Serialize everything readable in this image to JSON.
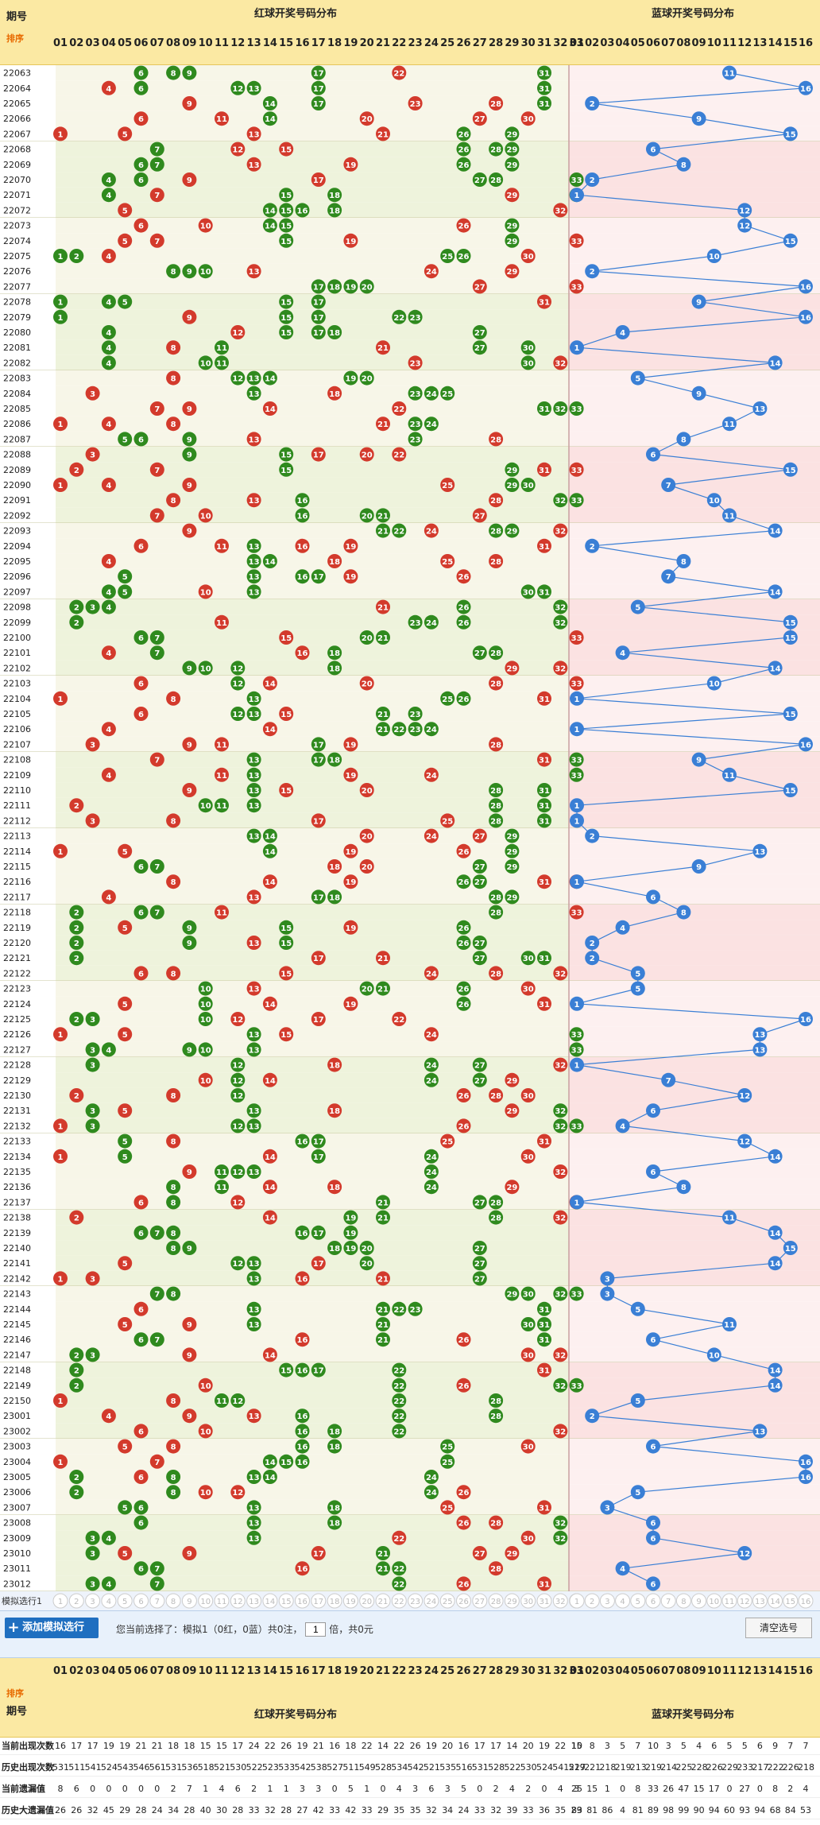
{
  "header": {
    "period_label": "期号",
    "sort_label": "排序",
    "red_title": "红球开奖号码分布",
    "blue_title": "蓝球开奖号码分布",
    "red_numbers": [
      "01",
      "02",
      "03",
      "04",
      "05",
      "06",
      "07",
      "08",
      "09",
      "10",
      "11",
      "12",
      "13",
      "14",
      "15",
      "16",
      "17",
      "18",
      "19",
      "20",
      "21",
      "22",
      "23",
      "24",
      "25",
      "26",
      "27",
      "28",
      "29",
      "30",
      "31",
      "32",
      "33"
    ],
    "blue_numbers": [
      "01",
      "02",
      "03",
      "04",
      "05",
      "06",
      "07",
      "08",
      "09",
      "10",
      "11",
      "12",
      "13",
      "14",
      "15",
      "16"
    ]
  },
  "colors": {
    "red_ball": "#d33a2c",
    "green_ball": "#2f8a1e",
    "blue_ball": "#3a7fd5",
    "header_bg": "#fbe9a3",
    "red_bg_a": "#f7f6e8",
    "red_bg_b": "#eef3dc",
    "blue_bg_a": "#fdf0f0",
    "blue_bg_b": "#fbe2e2"
  },
  "draws": [
    {
      "p": "22063",
      "r": [
        6,
        8,
        9,
        17,
        22,
        31
      ],
      "b": 11
    },
    {
      "p": "22064",
      "r": [
        4,
        6,
        12,
        13,
        17,
        31
      ],
      "b": 16
    },
    {
      "p": "22065",
      "r": [
        9,
        14,
        17,
        23,
        28,
        31
      ],
      "b": 2
    },
    {
      "p": "22066",
      "r": [
        6,
        11,
        14,
        20,
        27,
        30
      ],
      "b": 9
    },
    {
      "p": "22067",
      "r": [
        1,
        5,
        13,
        21,
        26,
        29
      ],
      "b": 15
    },
    {
      "p": "22068",
      "r": [
        7,
        12,
        15,
        26,
        28,
        29
      ],
      "b": 6
    },
    {
      "p": "22069",
      "r": [
        6,
        7,
        13,
        19,
        26,
        29
      ],
      "b": 8
    },
    {
      "p": "22070",
      "r": [
        4,
        6,
        9,
        17,
        27,
        28,
        33
      ],
      "b": 2
    },
    {
      "p": "22071",
      "r": [
        4,
        7,
        15,
        18,
        29,
        33
      ],
      "b": 1
    },
    {
      "p": "22072",
      "r": [
        5,
        14,
        15,
        16,
        18,
        32
      ],
      "b": 12
    },
    {
      "p": "22073",
      "r": [
        6,
        10,
        14,
        15,
        26,
        29
      ],
      "b": 12
    },
    {
      "p": "22074",
      "r": [
        5,
        7,
        15,
        19,
        29,
        33
      ],
      "b": 15
    },
    {
      "p": "22075",
      "r": [
        1,
        2,
        4,
        25,
        26,
        30
      ],
      "b": 10
    },
    {
      "p": "22076",
      "r": [
        8,
        9,
        10,
        13,
        24,
        29
      ],
      "b": 2
    },
    {
      "p": "22077",
      "r": [
        17,
        18,
        19,
        20,
        27,
        33
      ],
      "b": 16
    },
    {
      "p": "22078",
      "r": [
        1,
        4,
        5,
        15,
        17,
        31
      ],
      "b": 9
    },
    {
      "p": "22079",
      "r": [
        1,
        9,
        15,
        17,
        22,
        23
      ],
      "b": 16
    },
    {
      "p": "22080",
      "r": [
        4,
        12,
        15,
        17,
        18,
        27
      ],
      "b": 4
    },
    {
      "p": "22081",
      "r": [
        4,
        8,
        11,
        21,
        27,
        30
      ],
      "b": 1
    },
    {
      "p": "22082",
      "r": [
        4,
        10,
        11,
        23,
        30,
        32
      ],
      "b": 14
    },
    {
      "p": "22083",
      "r": [
        8,
        12,
        13,
        14,
        19,
        20
      ],
      "b": 5
    },
    {
      "p": "22084",
      "r": [
        3,
        13,
        18,
        23,
        24,
        25
      ],
      "b": 9
    },
    {
      "p": "22085",
      "r": [
        7,
        9,
        14,
        22,
        31,
        32,
        33
      ],
      "b": 13
    },
    {
      "p": "22086",
      "r": [
        1,
        4,
        8,
        21,
        23,
        24
      ],
      "b": 11
    },
    {
      "p": "22087",
      "r": [
        5,
        6,
        9,
        13,
        23,
        28
      ],
      "b": 8
    },
    {
      "p": "22088",
      "r": [
        3,
        9,
        15,
        17,
        20,
        22
      ],
      "b": 6
    },
    {
      "p": "22089",
      "r": [
        2,
        7,
        15,
        29,
        31,
        33
      ],
      "b": 15
    },
    {
      "p": "22090",
      "r": [
        1,
        4,
        9,
        25,
        29,
        30
      ],
      "b": 7
    },
    {
      "p": "22091",
      "r": [
        8,
        13,
        16,
        28,
        32,
        33
      ],
      "b": 10
    },
    {
      "p": "22092",
      "r": [
        7,
        10,
        16,
        20,
        21,
        27
      ],
      "b": 11
    },
    {
      "p": "22093",
      "r": [
        9,
        21,
        22,
        24,
        28,
        29,
        32
      ],
      "b": 14
    },
    {
      "p": "22094",
      "r": [
        6,
        11,
        13,
        16,
        19,
        31
      ],
      "b": 2
    },
    {
      "p": "22095",
      "r": [
        4,
        13,
        14,
        18,
        25,
        28
      ],
      "b": 8
    },
    {
      "p": "22096",
      "r": [
        5,
        13,
        16,
        17,
        19,
        26
      ],
      "b": 7
    },
    {
      "p": "22097",
      "r": [
        4,
        5,
        10,
        13,
        30,
        31
      ],
      "b": 14
    },
    {
      "p": "22098",
      "r": [
        2,
        3,
        4,
        21,
        26,
        32
      ],
      "b": 5
    },
    {
      "p": "22099",
      "r": [
        2,
        11,
        23,
        24,
        26,
        32
      ],
      "b": 15
    },
    {
      "p": "22100",
      "r": [
        6,
        7,
        15,
        20,
        21,
        33
      ],
      "b": 15
    },
    {
      "p": "22101",
      "r": [
        4,
        7,
        16,
        18,
        27,
        28
      ],
      "b": 4
    },
    {
      "p": "22102",
      "r": [
        9,
        10,
        12,
        18,
        29,
        32
      ],
      "b": 14
    },
    {
      "p": "22103",
      "r": [
        6,
        12,
        14,
        20,
        28,
        33
      ],
      "b": 10
    },
    {
      "p": "22104",
      "r": [
        1,
        8,
        13,
        25,
        26,
        31
      ],
      "b": 1
    },
    {
      "p": "22105",
      "r": [
        6,
        12,
        13,
        15,
        21,
        23
      ],
      "b": 15
    },
    {
      "p": "22106",
      "r": [
        4,
        14,
        21,
        22,
        23,
        24
      ],
      "b": 1
    },
    {
      "p": "22107",
      "r": [
        3,
        9,
        11,
        17,
        19,
        28
      ],
      "b": 16
    },
    {
      "p": "22108",
      "r": [
        7,
        13,
        17,
        18,
        31,
        33
      ],
      "b": 9
    },
    {
      "p": "22109",
      "r": [
        4,
        11,
        13,
        19,
        24,
        33
      ],
      "b": 11
    },
    {
      "p": "22110",
      "r": [
        9,
        13,
        15,
        20,
        28,
        31
      ],
      "b": 15
    },
    {
      "p": "22111",
      "r": [
        2,
        10,
        11,
        13,
        28,
        31
      ],
      "b": 1
    },
    {
      "p": "22112",
      "r": [
        3,
        8,
        17,
        25,
        28,
        31
      ],
      "b": 1
    },
    {
      "p": "22113",
      "r": [
        13,
        14,
        20,
        24,
        27,
        29
      ],
      "b": 2
    },
    {
      "p": "22114",
      "r": [
        1,
        5,
        14,
        19,
        26,
        29
      ],
      "b": 13
    },
    {
      "p": "22115",
      "r": [
        6,
        7,
        18,
        20,
        27,
        29
      ],
      "b": 9
    },
    {
      "p": "22116",
      "r": [
        8,
        14,
        19,
        26,
        27,
        31,
        33
      ],
      "b": 1
    },
    {
      "p": "22117",
      "r": [
        4,
        13,
        17,
        18,
        28,
        29
      ],
      "b": 6
    },
    {
      "p": "22118",
      "r": [
        2,
        6,
        7,
        11,
        28,
        33
      ],
      "b": 8
    },
    {
      "p": "22119",
      "r": [
        2,
        5,
        9,
        15,
        19,
        26
      ],
      "b": 4
    },
    {
      "p": "22120",
      "r": [
        2,
        9,
        13,
        15,
        26,
        27
      ],
      "b": 2
    },
    {
      "p": "22121",
      "r": [
        2,
        17,
        21,
        27,
        30,
        31
      ],
      "b": 2
    },
    {
      "p": "22122",
      "r": [
        6,
        8,
        15,
        24,
        28,
        32
      ],
      "b": 5
    },
    {
      "p": "22123",
      "r": [
        10,
        13,
        20,
        21,
        26,
        30
      ],
      "b": 5
    },
    {
      "p": "22124",
      "r": [
        5,
        10,
        14,
        19,
        26,
        31
      ],
      "b": 1
    },
    {
      "p": "22125",
      "r": [
        2,
        3,
        10,
        12,
        17,
        22
      ],
      "b": 16
    },
    {
      "p": "22126",
      "r": [
        1,
        5,
        13,
        15,
        24,
        33
      ],
      "b": 13
    },
    {
      "p": "22127",
      "r": [
        3,
        4,
        9,
        10,
        13,
        33
      ],
      "b": 13
    },
    {
      "p": "22128",
      "r": [
        3,
        12,
        18,
        24,
        27,
        32
      ],
      "b": 1
    },
    {
      "p": "22129",
      "r": [
        10,
        12,
        14,
        24,
        27,
        29
      ],
      "b": 7
    },
    {
      "p": "22130",
      "r": [
        2,
        8,
        12,
        26,
        28,
        30
      ],
      "b": 12
    },
    {
      "p": "22131",
      "r": [
        3,
        5,
        13,
        18,
        29,
        32
      ],
      "b": 6
    },
    {
      "p": "22132",
      "r": [
        1,
        3,
        12,
        13,
        26,
        32,
        33
      ],
      "b": 4
    },
    {
      "p": "22133",
      "r": [
        5,
        8,
        16,
        17,
        25,
        31
      ],
      "b": 12
    },
    {
      "p": "22134",
      "r": [
        1,
        5,
        14,
        17,
        24,
        30
      ],
      "b": 14
    },
    {
      "p": "22135",
      "r": [
        9,
        11,
        12,
        13,
        24,
        32
      ],
      "b": 6
    },
    {
      "p": "22136",
      "r": [
        8,
        11,
        14,
        18,
        24,
        29
      ],
      "b": 8
    },
    {
      "p": "22137",
      "r": [
        6,
        8,
        12,
        21,
        27,
        28,
        33
      ],
      "b": 1
    },
    {
      "p": "22138",
      "r": [
        2,
        14,
        19,
        21,
        28,
        32
      ],
      "b": 11
    },
    {
      "p": "22139",
      "r": [
        6,
        7,
        8,
        16,
        17,
        19
      ],
      "b": 14
    },
    {
      "p": "22140",
      "r": [
        8,
        9,
        18,
        19,
        20,
        27
      ],
      "b": 15
    },
    {
      "p": "22141",
      "r": [
        5,
        12,
        13,
        17,
        20,
        27
      ],
      "b": 14
    },
    {
      "p": "22142",
      "r": [
        1,
        3,
        13,
        16,
        21,
        27
      ],
      "b": 3
    },
    {
      "p": "22143",
      "r": [
        7,
        8,
        29,
        30,
        32,
        33
      ],
      "b": 3
    },
    {
      "p": "22144",
      "r": [
        6,
        13,
        21,
        22,
        23,
        31
      ],
      "b": 5
    },
    {
      "p": "22145",
      "r": [
        5,
        9,
        13,
        21,
        30,
        31
      ],
      "b": 11
    },
    {
      "p": "22146",
      "r": [
        6,
        7,
        16,
        21,
        26,
        31
      ],
      "b": 6
    },
    {
      "p": "22147",
      "r": [
        2,
        3,
        9,
        14,
        30,
        32
      ],
      "b": 10
    },
    {
      "p": "22148",
      "r": [
        2,
        15,
        16,
        17,
        22,
        31
      ],
      "b": 14
    },
    {
      "p": "22149",
      "r": [
        2,
        10,
        22,
        26,
        32,
        33
      ],
      "b": 14
    },
    {
      "p": "22150",
      "r": [
        1,
        8,
        11,
        12,
        22,
        28
      ],
      "b": 5
    },
    {
      "p": "23001",
      "r": [
        4,
        9,
        13,
        16,
        22,
        28
      ],
      "b": 2
    },
    {
      "p": "23002",
      "r": [
        6,
        10,
        16,
        18,
        22,
        32
      ],
      "b": 13
    },
    {
      "p": "23003",
      "r": [
        5,
        8,
        16,
        18,
        25,
        30
      ],
      "b": 6
    },
    {
      "p": "23004",
      "r": [
        1,
        7,
        14,
        15,
        16,
        25
      ],
      "b": 16
    },
    {
      "p": "23005",
      "r": [
        2,
        6,
        8,
        13,
        14,
        24
      ],
      "b": 16
    },
    {
      "p": "23006",
      "r": [
        2,
        8,
        10,
        12,
        24,
        26
      ],
      "b": 5
    },
    {
      "p": "23007",
      "r": [
        5,
        6,
        13,
        18,
        25,
        31
      ],
      "b": 3
    },
    {
      "p": "23008",
      "r": [
        6,
        13,
        18,
        26,
        28,
        32
      ],
      "b": 6
    },
    {
      "p": "23009",
      "r": [
        3,
        4,
        13,
        22,
        30,
        32
      ],
      "b": 6
    },
    {
      "p": "23010",
      "r": [
        3,
        5,
        9,
        17,
        21,
        27,
        29
      ],
      "b": 12
    },
    {
      "p": "23011",
      "r": [
        6,
        7,
        16,
        21,
        22,
        28
      ],
      "b": 4
    },
    {
      "p": "23012",
      "r": [
        3,
        4,
        7,
        22,
        26,
        31
      ],
      "b": 6
    }
  ],
  "sim_row_label": "模拟选行1",
  "control": {
    "add_sim_label": "添加模拟选行",
    "selection_text": "您当前选择了：模拟1（0红，0蓝）共0注，",
    "multiplier_value": "1",
    "multiplier_suffix": "倍，共0元",
    "clear_label": "清空选号"
  },
  "footer_stats": {
    "labels": [
      "当前出现次数",
      "历史出现次数",
      "当前遗漏值",
      "历史大遗漏值"
    ],
    "rows": [
      [
        16,
        17,
        17,
        19,
        19,
        21,
        21,
        18,
        18,
        15,
        15,
        17,
        24,
        22,
        26,
        19,
        21,
        16,
        18,
        22,
        14,
        22,
        26,
        19,
        20,
        16,
        17,
        17,
        14,
        20,
        19,
        22,
        15,
        10,
        8,
        3,
        5,
        7,
        10,
        3,
        5,
        4,
        6,
        5,
        5,
        6,
        9,
        7,
        7
      ],
      [
        531,
        511,
        541,
        524,
        543,
        546,
        561,
        531,
        536,
        518,
        521,
        530,
        522,
        523,
        533,
        542,
        538,
        527,
        511,
        549,
        528,
        534,
        542,
        521,
        535,
        516,
        531,
        528,
        522,
        530,
        524,
        541,
        519,
        227,
        221,
        218,
        219,
        213,
        219,
        214,
        225,
        228,
        226,
        229,
        233,
        217,
        222,
        226,
        218
      ],
      [
        8,
        6,
        0,
        0,
        0,
        0,
        0,
        2,
        7,
        1,
        4,
        6,
        2,
        1,
        1,
        3,
        3,
        0,
        5,
        1,
        0,
        4,
        3,
        6,
        3,
        5,
        0,
        2,
        4,
        2,
        0,
        4,
        3,
        25,
        15,
        1,
        0,
        8,
        33,
        26,
        47,
        15,
        17,
        0,
        27,
        0,
        8,
        2,
        4
      ],
      [
        26,
        26,
        32,
        45,
        29,
        28,
        24,
        34,
        28,
        40,
        30,
        28,
        33,
        32,
        28,
        27,
        42,
        33,
        42,
        33,
        29,
        35,
        35,
        32,
        34,
        24,
        33,
        32,
        39,
        33,
        36,
        35,
        29,
        83,
        81,
        86,
        4,
        81,
        89,
        98,
        99,
        90,
        94,
        60,
        93,
        94,
        68,
        84,
        53
      ]
    ]
  }
}
